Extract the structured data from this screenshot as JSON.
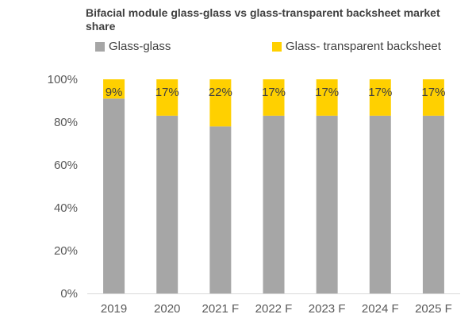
{
  "chart_data": {
    "type": "bar",
    "stacked": true,
    "title": "Bifacial module glass-glass vs glass-transparent backsheet market share",
    "categories": [
      "2019",
      "2020",
      "2021 F",
      "2022 F",
      "2023 F",
      "2024 F",
      "2025 F"
    ],
    "series": [
      {
        "name": "Glass-glass",
        "color": "#a6a6a6",
        "values": [
          91,
          83,
          78,
          83,
          83,
          83,
          83
        ]
      },
      {
        "name": "Glass- transparent backsheet",
        "color": "#ffd000",
        "values": [
          9,
          17,
          22,
          17,
          17,
          17,
          17
        ],
        "labels": [
          "9%",
          "17%",
          "22%",
          "17%",
          "17%",
          "17%",
          "17%"
        ]
      }
    ],
    "ylim": [
      0,
      100
    ],
    "yticks": [
      "0%",
      "20%",
      "40%",
      "60%",
      "80%",
      "100%"
    ],
    "ytick_values": [
      0,
      20,
      40,
      60,
      80,
      100
    ],
    "grid": false,
    "legend_position": "top"
  }
}
